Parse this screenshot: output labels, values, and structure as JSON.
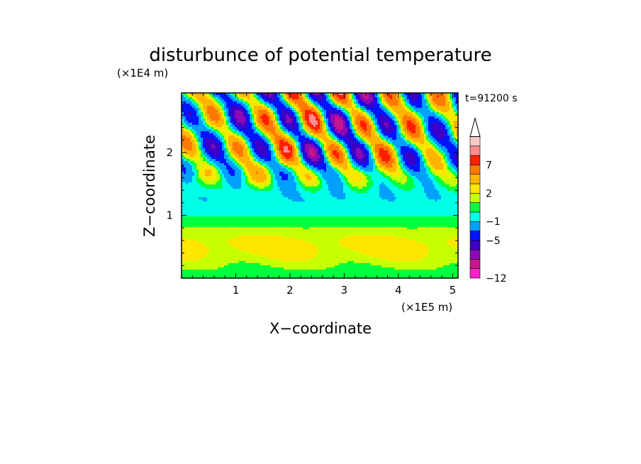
{
  "chart_data": {
    "type": "heatmap",
    "title": "disturbunce of potential temperature",
    "xlabel": "X−coordinate",
    "ylabel": "Z−coordinate",
    "x_scale_label": "(×1E5 m)",
    "y_scale_label": "(×1E4 m)",
    "time_label": "t=91200 s",
    "xlim": [
      0,
      5.1
    ],
    "ylim": [
      0,
      2.95
    ],
    "x_ticks": [
      1,
      2,
      3,
      4,
      5
    ],
    "y_ticks": [
      1,
      2
    ],
    "x_tick_labels": [
      "1",
      "2",
      "3",
      "4",
      "5"
    ],
    "y_tick_labels": [
      "1",
      "2"
    ],
    "colorbar": {
      "levels": [
        -12,
        -11,
        -9,
        -7,
        -5,
        -3,
        -1,
        0,
        1,
        2,
        3,
        5,
        7,
        9,
        11
      ],
      "tick_labels": [
        "−12",
        "−5",
        "−1",
        "2",
        "7"
      ],
      "tick_level_index": [
        0,
        4,
        6,
        9,
        12
      ],
      "colors": [
        "#ff1ec8",
        "#c8148c",
        "#8c0ab4",
        "#3c00c8",
        "#0014ff",
        "#00a0ff",
        "#00ffe6",
        "#00ff3c",
        "#c8ff00",
        "#ffe600",
        "#ffb400",
        "#ff7800",
        "#ff1e00",
        "#ff8c8c",
        "#ffc8c8"
      ],
      "extend": "max"
    }
  }
}
